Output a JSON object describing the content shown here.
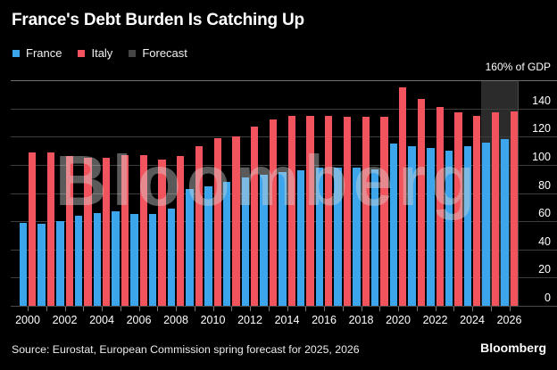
{
  "title": "France's Debt Burden Is Catching Up",
  "legend": {
    "items": [
      {
        "label": "France",
        "color": "#3CA5EC"
      },
      {
        "label": "Italy",
        "color": "#F2545E"
      },
      {
        "label": "Forecast",
        "color": "#454545"
      }
    ]
  },
  "watermark": "Bloomberg",
  "source": "Source: Eurostat, European Commission spring forecast for 2025, 2026",
  "brand": "Bloomberg",
  "chart_data": {
    "type": "bar",
    "title": "France's Debt Burden Is Catching Up",
    "unit_label": "160% of GDP",
    "ylabel": "% of GDP",
    "categories": [
      2000,
      2001,
      2002,
      2003,
      2004,
      2005,
      2006,
      2007,
      2008,
      2009,
      2010,
      2011,
      2012,
      2013,
      2014,
      2015,
      2016,
      2017,
      2018,
      2019,
      2020,
      2021,
      2022,
      2023,
      2024,
      2025,
      2026
    ],
    "series": [
      {
        "name": "France",
        "color": "#3CA5EC",
        "values": [
          59,
          58,
          60,
          64,
          66,
          67,
          65,
          65,
          69,
          83,
          85,
          88,
          91,
          93,
          95,
          96,
          98,
          98,
          98,
          97,
          115,
          113,
          112,
          110,
          113,
          116,
          118
        ]
      },
      {
        "name": "Italy",
        "color": "#F2545E",
        "values": [
          109,
          109,
          106,
          105,
          105,
          107,
          107,
          104,
          106,
          113,
          119,
          120,
          127,
          132,
          135,
          135,
          135,
          134,
          134,
          134,
          155,
          147,
          141,
          137,
          135,
          137,
          138
        ]
      }
    ],
    "forecast": {
      "label": "Forecast",
      "band_color": "#2B2B2B",
      "legend_color": "#454545",
      "start_category": 2025,
      "categories": [
        2025,
        2026
      ]
    },
    "ylim": [
      0,
      160
    ],
    "yticks": [
      0,
      20,
      40,
      60,
      80,
      100,
      120,
      140
    ],
    "x_tick_labels": [
      "2000",
      "2002",
      "2004",
      "2006",
      "2008",
      "2010",
      "2012",
      "2014",
      "2016",
      "2018",
      "2020",
      "2022",
      "2024",
      "2026"
    ],
    "grid": true,
    "legend_position": "top-left"
  }
}
